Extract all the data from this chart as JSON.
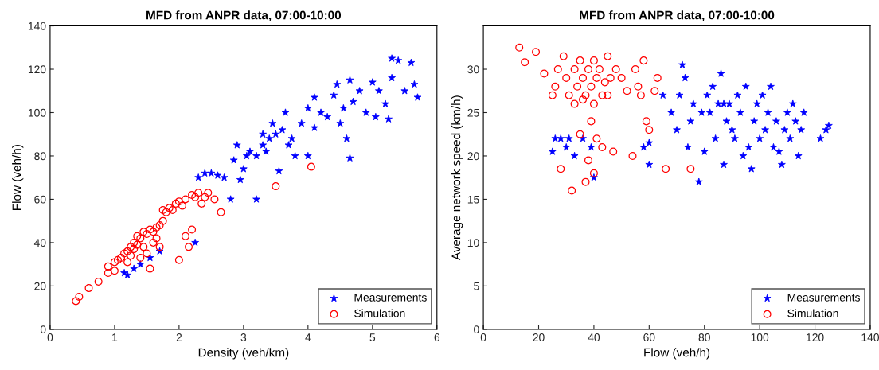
{
  "chart_data": [
    {
      "type": "scatter",
      "title": "MFD from ANPR data, 07:00-10:00",
      "xlabel": "Density (veh/km)",
      "ylabel": "Flow (veh/h)",
      "xlim": [
        0,
        6
      ],
      "xticks": [
        0,
        1,
        2,
        3,
        4,
        5,
        6
      ],
      "ylim": [
        0,
        140
      ],
      "yticks": [
        0,
        20,
        40,
        60,
        80,
        100,
        120,
        140
      ],
      "grid": false,
      "legend": "bottom right",
      "series": [
        {
          "name": "Measurements",
          "color": "#0000ff",
          "marker": "star",
          "x": [
            1.2,
            1.15,
            1.3,
            1.4,
            1.55,
            1.7,
            2.25,
            2.3,
            2.4,
            2.5,
            2.6,
            2.7,
            2.8,
            2.85,
            2.9,
            2.95,
            3.0,
            3.1,
            3.2,
            3.2,
            3.3,
            3.4,
            3.45,
            3.5,
            3.55,
            3.6,
            3.65,
            3.7,
            3.75,
            3.8,
            3.9,
            4.0,
            4.0,
            4.1,
            4.2,
            4.3,
            4.4,
            4.45,
            4.5,
            4.55,
            4.6,
            4.65,
            4.65,
            4.7,
            4.8,
            4.9,
            5.0,
            5.05,
            5.1,
            5.2,
            5.25,
            5.3,
            5.3,
            5.4,
            5.5,
            5.6,
            5.65,
            5.7,
            3.3,
            3.35,
            4.1,
            3.05
          ],
          "values": [
            25,
            26,
            28,
            30,
            33,
            36,
            40,
            70,
            72,
            72,
            71,
            70,
            60,
            78,
            85,
            69,
            74,
            82,
            60,
            80,
            85,
            88,
            95,
            90,
            73,
            92,
            100,
            85,
            88,
            80,
            95,
            102,
            80,
            93,
            100,
            98,
            108,
            113,
            95,
            102,
            88,
            79,
            115,
            105,
            110,
            100,
            114,
            98,
            110,
            104,
            97,
            116,
            125,
            124,
            110,
            123,
            113,
            107,
            90,
            82,
            107,
            80
          ]
        },
        {
          "name": "Simulation",
          "color": "#ff0000",
          "marker": "circle",
          "x": [
            0.4,
            0.45,
            0.6,
            0.75,
            0.9,
            0.9,
            1.0,
            1.05,
            1.1,
            1.15,
            1.2,
            1.25,
            1.3,
            1.3,
            1.35,
            1.4,
            1.45,
            1.5,
            1.5,
            1.55,
            1.6,
            1.6,
            1.65,
            1.7,
            1.7,
            1.75,
            1.8,
            1.85,
            1.9,
            1.95,
            2.0,
            2.05,
            2.1,
            2.1,
            2.15,
            2.2,
            2.2,
            2.25,
            2.3,
            2.35,
            2.4,
            2.45,
            2.55,
            2.65,
            3.5,
            4.05,
            1.2,
            1.4,
            1.55,
            1.0,
            1.25,
            1.35,
            1.45,
            1.65,
            1.75,
            2.0
          ],
          "values": [
            13,
            15,
            19,
            22,
            26,
            29,
            31,
            32,
            33,
            35,
            36,
            38,
            37,
            40,
            39,
            42,
            38,
            44,
            35,
            46,
            45,
            40,
            47,
            48,
            38,
            50,
            54,
            56,
            55,
            58,
            32,
            57,
            43,
            60,
            38,
            62,
            46,
            61,
            63,
            58,
            61,
            63,
            60,
            54,
            66,
            75,
            31,
            33,
            28,
            27,
            34,
            43,
            45,
            42,
            55,
            59
          ]
        }
      ]
    },
    {
      "type": "scatter",
      "title": "MFD from ANPR data, 07:00-10:00",
      "xlabel": "Flow (veh/h)",
      "ylabel": "Average network speed (km/h)",
      "xlim": [
        0,
        140
      ],
      "xticks": [
        0,
        20,
        40,
        60,
        80,
        100,
        120,
        140
      ],
      "ylim": [
        0,
        35
      ],
      "yticks": [
        0,
        5,
        10,
        15,
        20,
        25,
        30
      ],
      "grid": false,
      "legend": "bottom right",
      "series": [
        {
          "name": "Measurements",
          "color": "#0000ff",
          "marker": "star",
          "x": [
            25,
            26,
            28,
            30,
            31,
            33,
            36,
            39,
            40,
            58,
            60,
            65,
            68,
            70,
            71,
            72,
            73,
            74,
            75,
            76,
            78,
            79,
            80,
            81,
            82,
            83,
            84,
            85,
            86,
            87,
            88,
            89,
            90,
            91,
            92,
            93,
            94,
            95,
            96,
            97,
            98,
            99,
            100,
            101,
            102,
            103,
            104,
            105,
            106,
            107,
            108,
            109,
            110,
            111,
            112,
            113,
            114,
            115,
            116,
            122,
            124,
            125,
            60,
            87
          ],
          "values": [
            20.5,
            22,
            22,
            21,
            22,
            20,
            22,
            21,
            17.5,
            21,
            19,
            27,
            25,
            23,
            27,
            30.5,
            29,
            21,
            24,
            26,
            17,
            25,
            20.5,
            27,
            25,
            28,
            22,
            26,
            29.5,
            19,
            24,
            26,
            23,
            22,
            27,
            25,
            20,
            28,
            21,
            18.5,
            24,
            26,
            22,
            27,
            23,
            25,
            28,
            21,
            24,
            20.5,
            19,
            23,
            25,
            22,
            26,
            24,
            20,
            23,
            25,
            22,
            23,
            23.5,
            21.5,
            26
          ]
        },
        {
          "name": "Simulation",
          "color": "#ff0000",
          "marker": "circle",
          "x": [
            13,
            15,
            19,
            22,
            25,
            26,
            27,
            28,
            29,
            30,
            31,
            32,
            33,
            34,
            35,
            35,
            36,
            37,
            37,
            38,
            38,
            39,
            39,
            40,
            40,
            40,
            41,
            42,
            43,
            43,
            44,
            45,
            46,
            47,
            48,
            50,
            52,
            54,
            55,
            56,
            57,
            58,
            59,
            60,
            62,
            63,
            66,
            75,
            41,
            45,
            33,
            36
          ],
          "values": [
            32.5,
            30.8,
            32,
            29.5,
            27,
            28,
            30,
            18.5,
            31.5,
            29,
            27,
            16,
            30,
            28,
            31,
            22.5,
            29,
            27,
            17,
            30,
            19.5,
            28,
            24,
            31,
            18,
            26,
            29,
            30,
            27,
            21,
            28.5,
            31.5,
            29,
            20.5,
            30,
            29,
            27.5,
            20,
            30,
            28,
            27,
            31,
            24,
            23,
            27.5,
            29,
            18.5,
            18.5,
            22,
            27,
            26,
            26.5
          ]
        }
      ]
    }
  ]
}
